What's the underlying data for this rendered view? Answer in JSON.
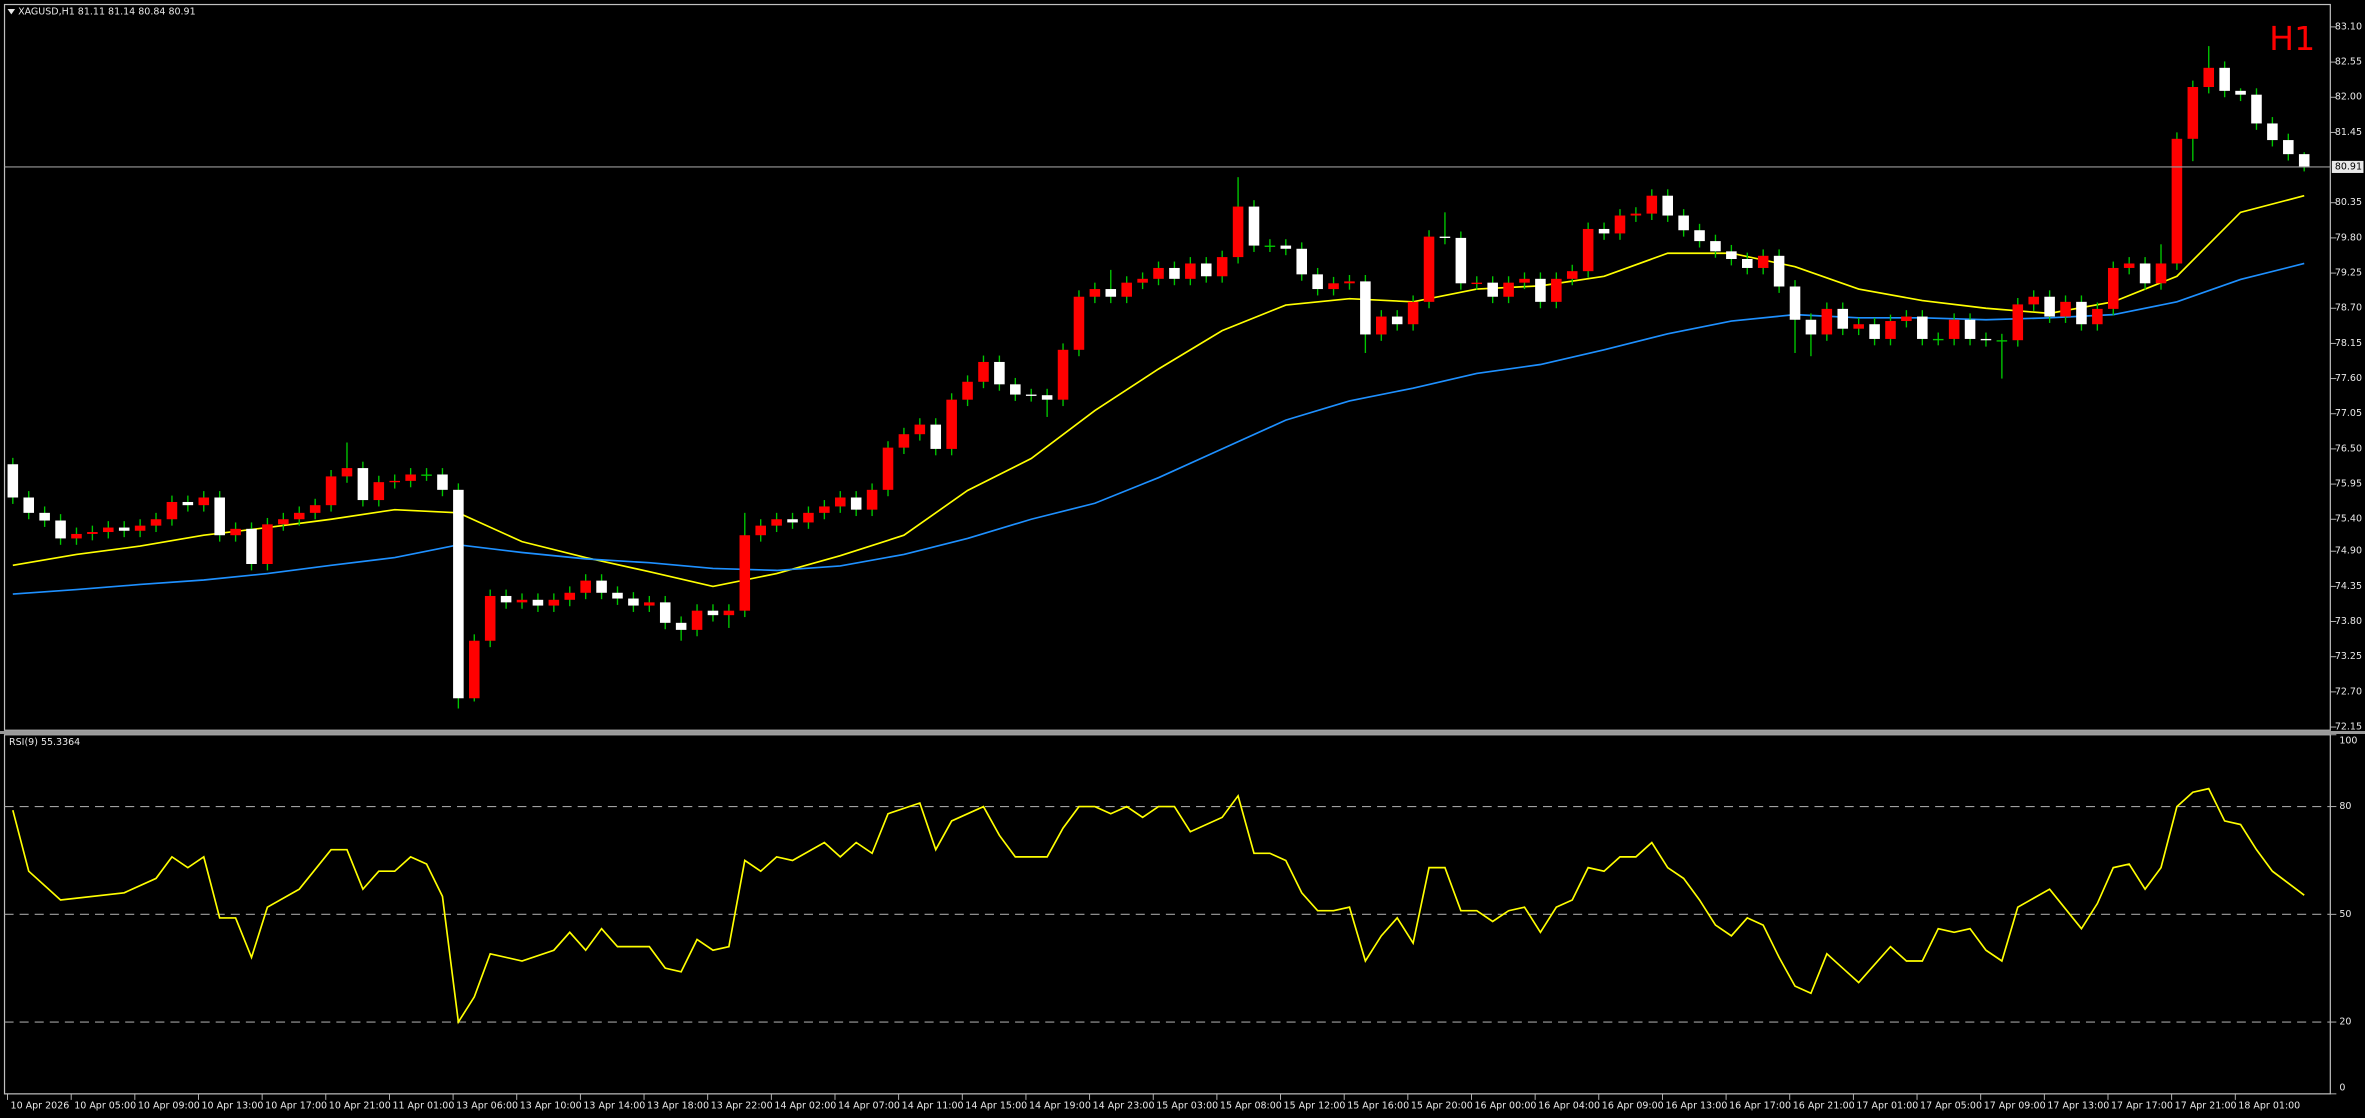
{
  "chart_data": {
    "type": "candlestick",
    "title": "XAGUSD,H1  81.11 81.14 80.84 80.91",
    "badge": "H1",
    "badge_color": "#ff0000",
    "up_color": "#ff0000",
    "down_color": "#ffffff",
    "wick_color": "#00c800",
    "ylim": [
      72.1,
      83.45
    ],
    "yticks": [
      {
        "value": 83.1,
        "label": "83.10"
      },
      82.55,
      {
        "value": 82.0,
        "label": "82.00"
      },
      81.45,
      80.35,
      {
        "value": 79.8,
        "label": "79.80"
      },
      79.25,
      {
        "value": 78.7,
        "label": "78.70"
      },
      78.15,
      {
        "value": 77.6,
        "label": "77.60"
      },
      77.05,
      {
        "value": 76.5,
        "label": "76.50"
      },
      75.95,
      {
        "value": 75.4,
        "label": "75.40"
      },
      {
        "value": 74.9,
        "label": "74.90"
      },
      74.35,
      {
        "value": 73.8,
        "label": "73.80"
      },
      73.25,
      {
        "value": 72.7,
        "label": "72.70"
      },
      72.15
    ],
    "grid": false,
    "categories": [
      "10 Apr 2026",
      null,
      null,
      null,
      "10 Apr 05:00",
      null,
      null,
      null,
      "10 Apr 09:00",
      null,
      null,
      null,
      "10 Apr 13:00",
      null,
      null,
      null,
      "10 Apr 17:00",
      null,
      null,
      null,
      "10 Apr 21:00",
      null,
      null,
      null,
      "11 Apr 01:00",
      null,
      null,
      null,
      "13 Apr 06:00",
      null,
      null,
      null,
      "13 Apr 10:00",
      null,
      null,
      null,
      "13 Apr 14:00",
      null,
      null,
      null,
      "13 Apr 18:00",
      null,
      null,
      null,
      "13 Apr 22:00",
      null,
      null,
      null,
      "14 Apr 02:00",
      null,
      null,
      null,
      "14 Apr 07:00",
      null,
      null,
      null,
      "14 Apr 11:00",
      null,
      null,
      null,
      "14 Apr 15:00",
      null,
      null,
      null,
      "14 Apr 19:00",
      null,
      null,
      null,
      "14 Apr 23:00",
      null,
      null,
      null,
      "15 Apr 03:00",
      null,
      null,
      null,
      "15 Apr 08:00",
      null,
      null,
      null,
      "15 Apr 12:00",
      null,
      null,
      null,
      "15 Apr 16:00",
      null,
      null,
      null,
      "15 Apr 20:00",
      null,
      null,
      null,
      "16 Apr 00:00",
      null,
      null,
      null,
      "16 Apr 04:00",
      null,
      null,
      null,
      "16 Apr 09:00",
      null,
      null,
      null,
      "16 Apr 13:00",
      null,
      null,
      null,
      "16 Apr 17:00",
      null,
      null,
      null,
      "16 Apr 21:00",
      null,
      null,
      null,
      "17 Apr 01:00",
      null,
      null,
      null,
      "17 Apr 05:00",
      null,
      null,
      null,
      "17 Apr 09:00",
      null,
      null,
      null,
      "17 Apr 13:00",
      null,
      null,
      null,
      "17 Apr 17:00",
      null,
      null,
      null,
      "17 Apr 21:00",
      null,
      null,
      null,
      "18 Apr 01:00",
      null,
      null,
      null,
      null
    ],
    "open": [
      76.26,
      75.74,
      75.5,
      75.38,
      75.1,
      75.17,
      75.2,
      75.27,
      75.22,
      75.3,
      75.4,
      75.67,
      75.62,
      75.74,
      75.15,
      75.25,
      74.7,
      75.32,
      75.4,
      75.5,
      75.62,
      76.07,
      76.2,
      75.7,
      75.98,
      76.0,
      76.1,
      76.1,
      75.86,
      72.6,
      73.5,
      74.2,
      74.1,
      74.14,
      74.05,
      74.14,
      74.25,
      74.44,
      74.25,
      74.16,
      74.05,
      74.1,
      73.78,
      73.67,
      73.97,
      73.9,
      73.97,
      75.15,
      75.3,
      75.4,
      75.35,
      75.5,
      75.6,
      75.74,
      75.55,
      75.86,
      76.52,
      76.73,
      76.88,
      76.5,
      77.27,
      77.55,
      77.86,
      77.51,
      77.35,
      77.34,
      77.27,
      78.05,
      78.88,
      79.0,
      78.88,
      79.1,
      79.16,
      79.33,
      79.16,
      79.4,
      79.2,
      79.5,
      80.29,
      79.68,
      79.68,
      79.63,
      79.23,
      79.0,
      79.09,
      79.12,
      78.29,
      78.57,
      78.45,
      78.8,
      79.82,
      79.8,
      79.09,
      79.1,
      78.88,
      79.1,
      79.16,
      78.8,
      79.16,
      79.28,
      79.94,
      79.87,
      80.15,
      80.18,
      80.46,
      80.15,
      79.92,
      79.75,
      79.59,
      79.47,
      79.33,
      79.52,
      79.04,
      78.52,
      78.29,
      78.69,
      78.38,
      78.45,
      78.22,
      78.5,
      78.57,
      78.22,
      78.22,
      78.52,
      78.22,
      78.2,
      78.2,
      78.76,
      78.88,
      78.57,
      78.8,
      78.45,
      78.69,
      79.33,
      79.4,
      79.09,
      79.4,
      81.35,
      82.16,
      82.46,
      82.1,
      82.04,
      81.59,
      81.33,
      81.11
    ],
    "high": [
      76.36,
      75.84,
      75.6,
      75.48,
      75.27,
      75.3,
      75.37,
      75.37,
      75.4,
      75.5,
      75.77,
      75.77,
      75.84,
      75.84,
      75.35,
      75.35,
      75.42,
      75.5,
      75.6,
      75.72,
      76.17,
      76.6,
      76.3,
      76.08,
      76.1,
      76.2,
      76.2,
      76.2,
      75.96,
      73.6,
      74.3,
      74.3,
      74.24,
      74.24,
      74.24,
      74.35,
      74.54,
      74.54,
      74.35,
      74.26,
      74.2,
      74.2,
      73.88,
      74.07,
      74.07,
      74.07,
      75.5,
      75.4,
      75.5,
      75.5,
      75.6,
      75.7,
      75.84,
      75.84,
      75.96,
      76.62,
      76.83,
      76.98,
      76.98,
      77.37,
      77.65,
      77.96,
      77.96,
      77.61,
      77.44,
      77.44,
      78.15,
      78.98,
      79.1,
      79.3,
      79.2,
      79.26,
      79.43,
      79.43,
      79.5,
      79.5,
      79.6,
      80.75,
      80.39,
      79.78,
      79.78,
      79.73,
      79.33,
      79.19,
      79.22,
      79.22,
      78.67,
      78.67,
      78.9,
      79.92,
      80.2,
      79.9,
      79.2,
      79.2,
      79.2,
      79.26,
      79.26,
      79.26,
      79.38,
      80.04,
      80.04,
      80.25,
      80.28,
      80.56,
      80.56,
      80.25,
      80.02,
      79.85,
      79.69,
      79.57,
      79.62,
      79.62,
      79.14,
      78.62,
      78.79,
      78.79,
      78.55,
      78.55,
      78.6,
      78.67,
      78.67,
      78.32,
      78.62,
      78.62,
      78.32,
      78.3,
      78.86,
      78.98,
      78.98,
      78.9,
      78.9,
      78.79,
      79.43,
      79.5,
      79.5,
      79.7,
      81.45,
      82.26,
      82.8,
      82.56,
      82.14,
      82.14,
      81.69,
      81.43,
      81.14
    ],
    "low": [
      75.64,
      75.4,
      75.28,
      75.0,
      75.0,
      75.07,
      75.1,
      75.12,
      75.12,
      75.2,
      75.3,
      75.52,
      75.52,
      75.05,
      75.05,
      74.6,
      74.6,
      75.22,
      75.3,
      75.4,
      75.52,
      75.97,
      75.6,
      75.6,
      75.88,
      75.9,
      76.0,
      75.76,
      72.44,
      72.55,
      73.4,
      74.0,
      74.0,
      73.95,
      73.95,
      74.04,
      74.15,
      74.15,
      74.06,
      73.95,
      73.95,
      73.68,
      73.5,
      73.57,
      73.8,
      73.7,
      73.87,
      75.05,
      75.2,
      75.25,
      75.25,
      75.4,
      75.5,
      75.45,
      75.45,
      75.76,
      76.42,
      76.63,
      76.4,
      76.4,
      77.17,
      77.45,
      77.41,
      77.25,
      77.24,
      77.0,
      77.17,
      77.95,
      78.78,
      78.78,
      78.78,
      79.0,
      79.06,
      79.06,
      79.06,
      79.1,
      79.1,
      79.4,
      79.58,
      79.58,
      79.53,
      79.13,
      78.9,
      78.9,
      78.99,
      78.0,
      78.19,
      78.35,
      78.35,
      78.7,
      79.7,
      78.99,
      78.99,
      78.78,
      78.78,
      79.0,
      78.7,
      78.7,
      79.06,
      79.18,
      79.77,
      79.77,
      80.05,
      80.08,
      80.05,
      79.82,
      79.65,
      79.49,
      79.37,
      79.23,
      79.23,
      78.94,
      78.0,
      77.95,
      78.19,
      78.28,
      78.28,
      78.12,
      78.12,
      78.4,
      78.12,
      78.12,
      78.12,
      78.12,
      78.1,
      77.6,
      78.1,
      78.66,
      78.47,
      78.47,
      78.35,
      78.35,
      78.59,
      79.23,
      78.99,
      78.99,
      79.3,
      81.0,
      82.06,
      82.0,
      81.94,
      81.49,
      81.23,
      81.01,
      80.84
    ],
    "close": [
      75.74,
      75.5,
      75.38,
      75.1,
      75.17,
      75.2,
      75.27,
      75.22,
      75.3,
      75.4,
      75.67,
      75.62,
      75.74,
      75.15,
      75.25,
      74.7,
      75.32,
      75.4,
      75.5,
      75.62,
      76.07,
      76.2,
      75.7,
      75.98,
      76.0,
      76.1,
      76.1,
      75.86,
      72.6,
      73.5,
      74.2,
      74.1,
      74.14,
      74.05,
      74.14,
      74.25,
      74.44,
      74.25,
      74.16,
      74.05,
      74.1,
      73.78,
      73.67,
      73.97,
      73.9,
      73.97,
      75.15,
      75.3,
      75.4,
      75.35,
      75.5,
      75.6,
      75.74,
      75.55,
      75.86,
      76.52,
      76.73,
      76.88,
      76.5,
      77.27,
      77.55,
      77.86,
      77.51,
      77.35,
      77.34,
      77.27,
      78.05,
      78.88,
      79.0,
      78.88,
      79.1,
      79.16,
      79.33,
      79.16,
      79.4,
      79.2,
      79.5,
      80.29,
      79.68,
      79.68,
      79.63,
      79.23,
      79.0,
      79.09,
      79.12,
      78.29,
      78.57,
      78.45,
      78.8,
      79.82,
      79.8,
      79.09,
      79.1,
      78.88,
      79.1,
      79.16,
      78.8,
      79.16,
      79.28,
      79.94,
      79.87,
      80.15,
      80.18,
      80.46,
      80.15,
      79.92,
      79.75,
      79.59,
      79.47,
      79.33,
      79.52,
      79.04,
      78.52,
      78.29,
      78.69,
      78.38,
      78.45,
      78.22,
      78.5,
      78.57,
      78.22,
      78.22,
      78.52,
      78.22,
      78.2,
      78.2,
      78.76,
      78.88,
      78.57,
      78.8,
      78.45,
      78.69,
      79.33,
      79.4,
      79.09,
      79.4,
      81.35,
      82.16,
      82.46,
      82.1,
      82.04,
      81.59,
      81.33,
      81.11,
      80.91
    ],
    "lines": [
      {
        "color": "#ffff00",
        "x": [
          0,
          4,
          8,
          12,
          16,
          20,
          24,
          28,
          32,
          36,
          40,
          44,
          48,
          52,
          56,
          60,
          64,
          68,
          72,
          76,
          80,
          84,
          88,
          92,
          96,
          100,
          104,
          108,
          112,
          116,
          120,
          124,
          128,
          132,
          136,
          140,
          144
        ],
        "values": [
          74.68,
          74.85,
          74.98,
          75.15,
          75.27,
          75.4,
          75.55,
          75.5,
          75.05,
          74.8,
          74.58,
          74.35,
          74.55,
          74.83,
          75.15,
          75.85,
          76.35,
          77.1,
          77.75,
          78.35,
          78.75,
          78.85,
          78.8,
          79.0,
          79.05,
          79.2,
          79.56,
          79.56,
          79.35,
          79.0,
          78.82,
          78.7,
          78.62,
          78.8,
          79.2,
          80.2,
          80.46
        ]
      },
      {
        "color": "#1e90ff",
        "x": [
          0,
          4,
          8,
          12,
          16,
          20,
          24,
          28,
          32,
          36,
          40,
          44,
          48,
          52,
          56,
          60,
          64,
          68,
          72,
          76,
          80,
          84,
          88,
          92,
          96,
          100,
          104,
          108,
          112,
          116,
          120,
          124,
          128,
          132,
          136,
          140,
          144
        ],
        "values": [
          74.23,
          74.3,
          74.38,
          74.45,
          74.55,
          74.68,
          74.8,
          75.0,
          74.88,
          74.78,
          74.72,
          74.63,
          74.6,
          74.67,
          74.85,
          75.1,
          75.4,
          75.65,
          76.05,
          76.5,
          76.95,
          77.25,
          77.45,
          77.68,
          77.82,
          78.05,
          78.3,
          78.5,
          78.6,
          78.55,
          78.55,
          78.52,
          78.55,
          78.6,
          78.8,
          79.15,
          79.4
        ]
      }
    ],
    "current_line_color": "#9a9a9a",
    "rsi": {
      "title": "RSI(9) 55.3364",
      "color": "#ffff00",
      "ylim": [
        0,
        100
      ],
      "yticks": [
        100,
        80,
        50,
        20,
        0
      ],
      "levels": [
        80,
        50,
        20
      ],
      "x": [
        0,
        1,
        3,
        7,
        9,
        10,
        11,
        12,
        13,
        14,
        15,
        16,
        18,
        20,
        21,
        22,
        23,
        24,
        25,
        26,
        27,
        28,
        29,
        30,
        32,
        34,
        35,
        36,
        37,
        38,
        40,
        41,
        42,
        43,
        44,
        45,
        46,
        47,
        48,
        49,
        51,
        52,
        53,
        54,
        55,
        57,
        58,
        59,
        61,
        62,
        63,
        64,
        65,
        66,
        67,
        68,
        69,
        70,
        71,
        72,
        73,
        74,
        76,
        77,
        78,
        79,
        80,
        81,
        82,
        83,
        84,
        85,
        86,
        87,
        88,
        89,
        90,
        91,
        92,
        93,
        94,
        95,
        96,
        97,
        98,
        99,
        100,
        101,
        102,
        103,
        104,
        105,
        106,
        107,
        108,
        109,
        110,
        111,
        112,
        113,
        114,
        115,
        116,
        117,
        118,
        119,
        120,
        121,
        122,
        123,
        124,
        125,
        126,
        128,
        130,
        131,
        132,
        133,
        134,
        135,
        136,
        137,
        138,
        139,
        140,
        141,
        142,
        144
      ],
      "values": [
        79,
        62,
        54,
        56,
        60,
        66,
        63,
        66,
        49,
        49,
        38,
        52,
        57,
        68,
        68,
        57,
        62,
        62,
        66,
        64,
        55,
        20,
        27,
        39,
        37,
        40,
        45,
        40,
        46,
        41,
        41,
        35,
        34,
        43,
        40,
        41,
        65,
        62,
        66,
        65,
        70,
        66,
        70,
        67,
        78,
        81,
        68,
        76,
        80,
        72,
        66,
        66,
        66,
        74,
        80,
        80,
        78,
        80,
        77,
        80,
        80,
        73,
        77,
        83,
        67,
        67,
        65,
        56,
        51,
        51,
        52,
        37,
        44,
        49,
        42,
        63,
        63,
        51,
        51,
        48,
        51,
        52,
        45,
        52,
        54,
        63,
        62,
        66,
        66,
        70,
        63,
        60,
        54,
        47,
        44,
        49,
        47,
        38,
        30,
        28,
        39,
        35,
        31,
        36,
        41,
        37,
        37,
        46,
        45,
        46,
        40,
        37,
        52,
        57,
        46,
        53,
        63,
        64,
        57,
        63,
        80,
        84,
        85,
        76,
        75,
        68,
        62,
        55.3364
      ]
    }
  }
}
